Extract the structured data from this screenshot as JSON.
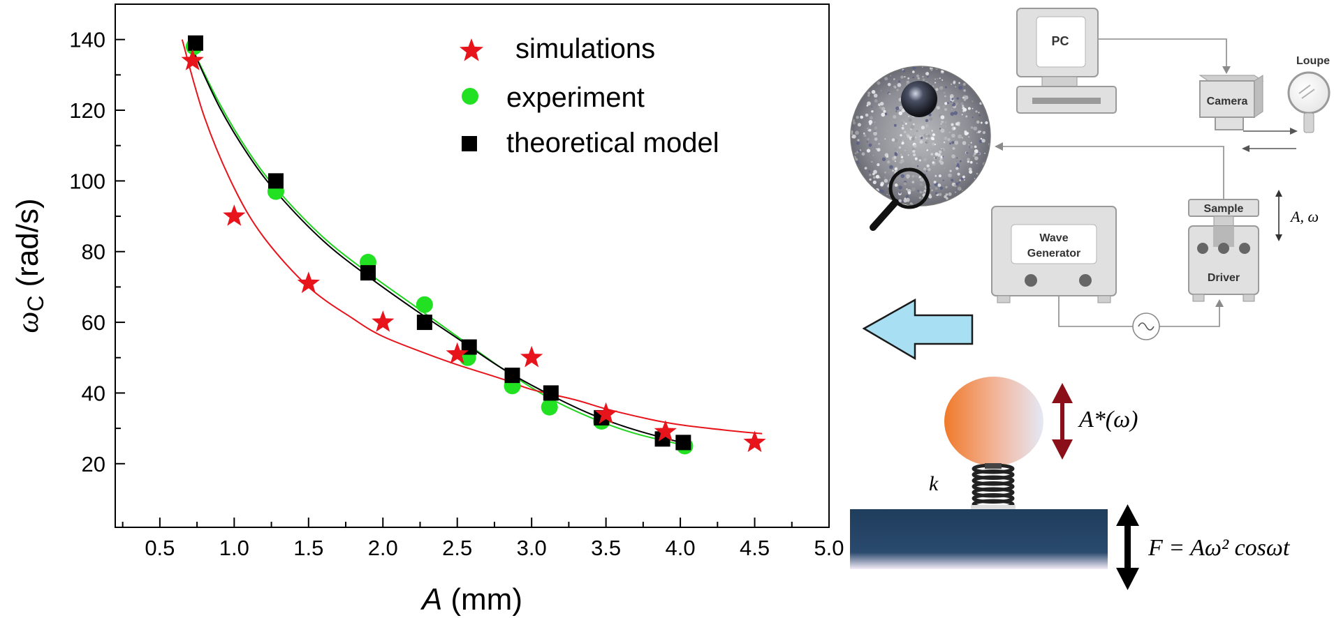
{
  "chart_data": {
    "type": "scatter",
    "xlabel_symbol": "A",
    "xlabel_unit": "(mm)",
    "ylabel_symbol": "ω",
    "ylabel_sub": "C",
    "ylabel_unit": "(rad/s)",
    "xlim": [
      0.2,
      5.0
    ],
    "ylim": [
      2,
      150
    ],
    "x_ticks": [
      "0.5",
      "1.0",
      "1.5",
      "2.0",
      "2.5",
      "3.0",
      "3.5",
      "4.0",
      "4.5",
      "5.0"
    ],
    "y_ticks": [
      "20",
      "40",
      "60",
      "80",
      "100",
      "120",
      "140"
    ],
    "legend_position": "top-right",
    "series": [
      {
        "name": "simulations",
        "marker": "star",
        "color": "#e8141c",
        "x": [
          0.72,
          1.0,
          1.5,
          2.0,
          2.5,
          3.0,
          3.5,
          3.9,
          4.5
        ],
        "y": [
          134,
          90,
          71,
          60,
          51,
          50,
          34,
          29,
          26
        ],
        "fit_x": [
          0.65,
          0.8,
          1.0,
          1.2,
          1.5,
          1.8,
          2.0,
          2.3,
          2.5,
          2.8,
          3.0,
          3.3,
          3.5,
          3.8,
          4.0,
          4.3,
          4.55
        ],
        "fit_y": [
          140,
          118,
          98,
          84,
          70,
          61,
          56,
          51,
          48,
          44,
          41,
          38,
          35.5,
          32.5,
          31,
          29.5,
          28.5
        ]
      },
      {
        "name": "experiment",
        "marker": "circle",
        "color": "#22e022",
        "x": [
          0.73,
          1.28,
          1.9,
          2.28,
          2.57,
          2.87,
          3.12,
          3.47,
          4.03
        ],
        "y": [
          138,
          97,
          77,
          65,
          50,
          42,
          36,
          32,
          25
        ],
        "fit_x": [
          0.7,
          0.9,
          1.1,
          1.3,
          1.6,
          1.9,
          2.2,
          2.5,
          2.8,
          3.1,
          3.4,
          3.7,
          4.05
        ],
        "fit_y": [
          139,
          122,
          108,
          97,
          84,
          74,
          65,
          56,
          47,
          39,
          33,
          28.5,
          25
        ]
      },
      {
        "name": "theoretical model",
        "marker": "square",
        "color": "#000000",
        "x": [
          0.74,
          1.28,
          1.9,
          2.28,
          2.58,
          2.87,
          3.13,
          3.47,
          3.88,
          4.02
        ],
        "y": [
          139,
          100,
          74,
          60,
          53,
          45,
          40,
          33,
          27,
          26
        ],
        "fit_x": [
          0.7,
          0.9,
          1.1,
          1.3,
          1.6,
          1.9,
          2.2,
          2.5,
          2.8,
          3.1,
          3.4,
          3.7,
          4.05
        ],
        "fit_y": [
          139,
          121,
          107,
          96,
          83,
          73,
          64,
          55.5,
          47,
          40,
          34,
          29.5,
          25.5
        ]
      }
    ]
  },
  "diagram": {
    "pc_label": "PC",
    "camera_label": "Camera",
    "loupe_label": "Loupe",
    "sample_label": "Sample",
    "wave_generator_line1": "Wave",
    "wave_generator_line2": "Generator",
    "driver_label": "Driver",
    "amp_freq_label": "A, ω",
    "ball_amp_label": "A*(ω)",
    "spring_label": "k",
    "force_label": "F = Aω² cosωt"
  },
  "colors": {
    "device_gray": "#e0e0e0",
    "device_stroke": "#9a9a9a",
    "arrow_fill": "#a8dff2",
    "base_plate": "#1f3d5c",
    "dark_red_arrow": "#8b0f18"
  }
}
